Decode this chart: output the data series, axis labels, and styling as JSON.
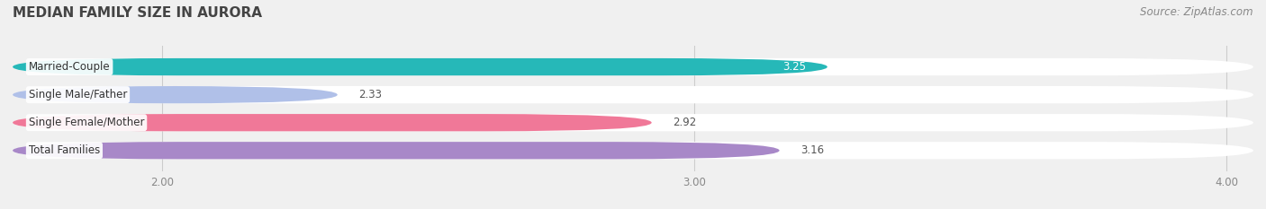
{
  "title": "MEDIAN FAMILY SIZE IN AURORA",
  "source": "Source: ZipAtlas.com",
  "categories": [
    "Married-Couple",
    "Single Male/Father",
    "Single Female/Mother",
    "Total Families"
  ],
  "values": [
    3.25,
    2.33,
    2.92,
    3.16
  ],
  "colors": [
    "#26b8b8",
    "#b0c0e8",
    "#f07898",
    "#a888c8"
  ],
  "background_color": "#f0f0f0",
  "bar_bg_color": "#e8e8e8",
  "xlim_min": 1.72,
  "xlim_max": 4.05,
  "xticks": [
    2.0,
    3.0,
    4.0
  ],
  "xtick_labels": [
    "2.00",
    "3.00",
    "4.00"
  ],
  "title_fontsize": 11,
  "label_fontsize": 8.5,
  "value_fontsize": 8.5,
  "source_fontsize": 8.5,
  "bar_height": 0.62,
  "value_white": [
    true,
    false,
    false,
    false
  ]
}
